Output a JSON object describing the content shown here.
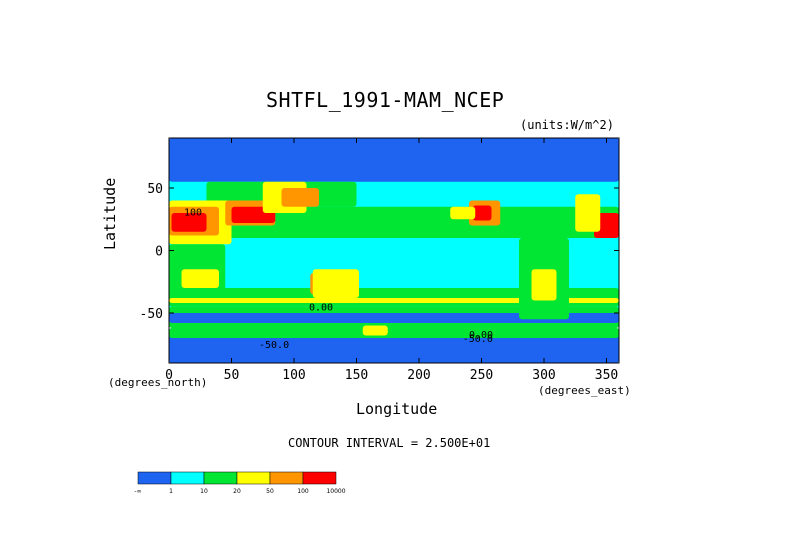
{
  "chart_data": {
    "type": "heatmap",
    "title": "SHTFL_1991-MAM_NCEP",
    "units": "(units:W/m^2)",
    "xlabel": "Longitude",
    "ylabel": "Latitude",
    "x_unit_note": "(degrees_east)",
    "y_unit_note": "(degrees_north)",
    "xlim": [
      0,
      360
    ],
    "ylim": [
      -90,
      90
    ],
    "x_ticks": [
      0,
      50,
      100,
      150,
      200,
      250,
      300,
      350
    ],
    "y_ticks": [
      -50,
      0,
      50
    ],
    "contour_interval": "CONTOUR INTERVAL = 2.500E+01",
    "contour_labels": [
      {
        "text": "100",
        "lon": 12,
        "lat": 28
      },
      {
        "text": "0.00",
        "lon": 112,
        "lat": -48
      },
      {
        "text": "-50.0",
        "lon": 72,
        "lat": -78
      },
      {
        "text": "-50.0",
        "lon": 235,
        "lat": -73
      },
      {
        "text": "0.00",
        "lon": 240,
        "lat": -70
      }
    ],
    "colorbar": {
      "colors": [
        "#1e64f0",
        "#00ffff",
        "#00e632",
        "#ffff00",
        "#ff9600",
        "#ff0000"
      ],
      "tick_labels": [
        "-∞",
        "1",
        "10",
        "20",
        "50",
        "100",
        "10000"
      ]
    },
    "regions": [
      {
        "cls": 1,
        "lon": [
          0,
          360
        ],
        "lat": [
          -60,
          60
        ]
      },
      {
        "cls": 0,
        "lon": [
          0,
          360
        ],
        "lat": [
          -90,
          -62
        ]
      },
      {
        "cls": 2,
        "lon": [
          0,
          360
        ],
        "lat": [
          -62,
          -45
        ]
      },
      {
        "cls": 0,
        "lon": [
          0,
          360
        ],
        "lat": [
          -58,
          -50
        ]
      },
      {
        "cls": 2,
        "lon": [
          0,
          360
        ],
        "lat": [
          -45,
          -30
        ]
      },
      {
        "cls": 3,
        "lon": [
          0,
          360
        ],
        "lat": [
          -42,
          -38
        ]
      },
      {
        "cls": 2,
        "lon": [
          0,
          360
        ],
        "lat": [
          10,
          35
        ]
      },
      {
        "cls": 0,
        "lon": [
          0,
          360
        ],
        "lat": [
          55,
          90
        ]
      },
      {
        "cls": 2,
        "lon": [
          30,
          150
        ],
        "lat": [
          35,
          55
        ]
      },
      {
        "cls": 3,
        "lon": [
          0,
          50
        ],
        "lat": [
          5,
          40
        ]
      },
      {
        "cls": 4,
        "lon": [
          0,
          40
        ],
        "lat": [
          12,
          35
        ]
      },
      {
        "cls": 5,
        "lon": [
          2,
          30
        ],
        "lat": [
          15,
          30
        ]
      },
      {
        "cls": 4,
        "lon": [
          45,
          85
        ],
        "lat": [
          20,
          40
        ]
      },
      {
        "cls": 5,
        "lon": [
          50,
          85
        ],
        "lat": [
          22,
          35
        ]
      },
      {
        "cls": 3,
        "lon": [
          75,
          110
        ],
        "lat": [
          30,
          55
        ]
      },
      {
        "cls": 4,
        "lon": [
          90,
          120
        ],
        "lat": [
          35,
          50
        ]
      },
      {
        "cls": 2,
        "lon": [
          0,
          45
        ],
        "lat": [
          -35,
          5
        ]
      },
      {
        "cls": 3,
        "lon": [
          10,
          40
        ],
        "lat": [
          -30,
          -15
        ]
      },
      {
        "cls": 4,
        "lon": [
          113,
          150
        ],
        "lat": [
          -35,
          -18
        ]
      },
      {
        "cls": 3,
        "lon": [
          115,
          152
        ],
        "lat": [
          -38,
          -15
        ]
      },
      {
        "cls": 2,
        "lon": [
          280,
          320
        ],
        "lat": [
          -55,
          10
        ]
      },
      {
        "cls": 3,
        "lon": [
          290,
          310
        ],
        "lat": [
          -40,
          -15
        ]
      },
      {
        "cls": 4,
        "lon": [
          240,
          265
        ],
        "lat": [
          20,
          40
        ]
      },
      {
        "cls": 5,
        "lon": [
          243,
          258
        ],
        "lat": [
          24,
          36
        ]
      },
      {
        "cls": 0,
        "lon": [
          190,
          270
        ],
        "lat": [
          58,
          90
        ]
      },
      {
        "cls": 3,
        "lon": [
          225,
          245
        ],
        "lat": [
          25,
          35
        ]
      },
      {
        "cls": 5,
        "lon": [
          340,
          360
        ],
        "lat": [
          10,
          30
        ]
      },
      {
        "cls": 3,
        "lon": [
          325,
          345
        ],
        "lat": [
          15,
          45
        ]
      },
      {
        "cls": 2,
        "lon": [
          0,
          360
        ],
        "lat": [
          -70,
          -62
        ]
      },
      {
        "cls": 3,
        "lon": [
          155,
          175
        ],
        "lat": [
          -68,
          -60
        ]
      }
    ]
  }
}
